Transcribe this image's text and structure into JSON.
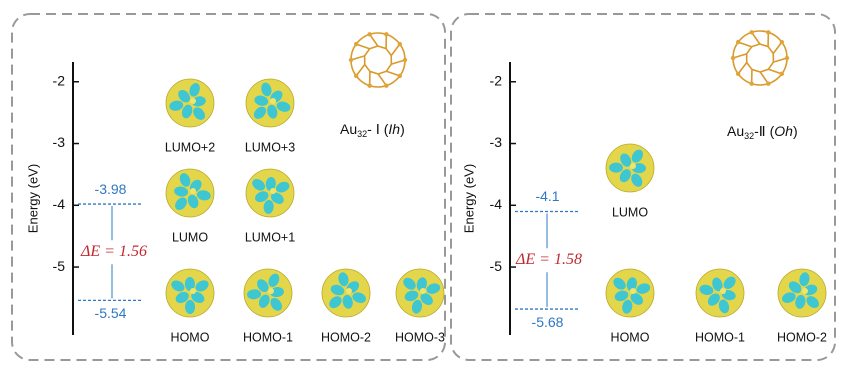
{
  "chart_data": [
    {
      "type": "energy-level",
      "ylabel": "Energy (eV)",
      "ylim": [
        -6.1,
        -1.68
      ],
      "yticks": [
        -2,
        -3,
        -4,
        -5
      ],
      "levels": [
        -3.98,
        -5.54
      ],
      "gap_label": "ΔE = 1.56",
      "level_color": "#2f78c4",
      "structure": {
        "base": "Au",
        "subscript": "32",
        "suffix": "- Ⅰ (",
        "symmetry": "Ih",
        "close": ")"
      },
      "orbitals": [
        "LUMO+2",
        "LUMO+3",
        "LUMO",
        "LUMO+1",
        "HOMO",
        "HOMO-1",
        "HOMO-2",
        "HOMO-3"
      ]
    },
    {
      "type": "energy-level",
      "ylabel": "Energy (eV)",
      "ylim": [
        -6.1,
        -1.68
      ],
      "yticks": [
        -2,
        -3,
        -4,
        -5
      ],
      "levels": [
        -4.1,
        -5.68
      ],
      "gap_label": "ΔE = 1.58",
      "level_color": "#2f78c4",
      "structure": {
        "base": "Au",
        "subscript": "32",
        "suffix": "-Ⅱ (",
        "symmetry": "Oh",
        "close": ")"
      },
      "orbitals": [
        "LUMO",
        "HOMO",
        "HOMO-1",
        "HOMO-2"
      ]
    }
  ]
}
